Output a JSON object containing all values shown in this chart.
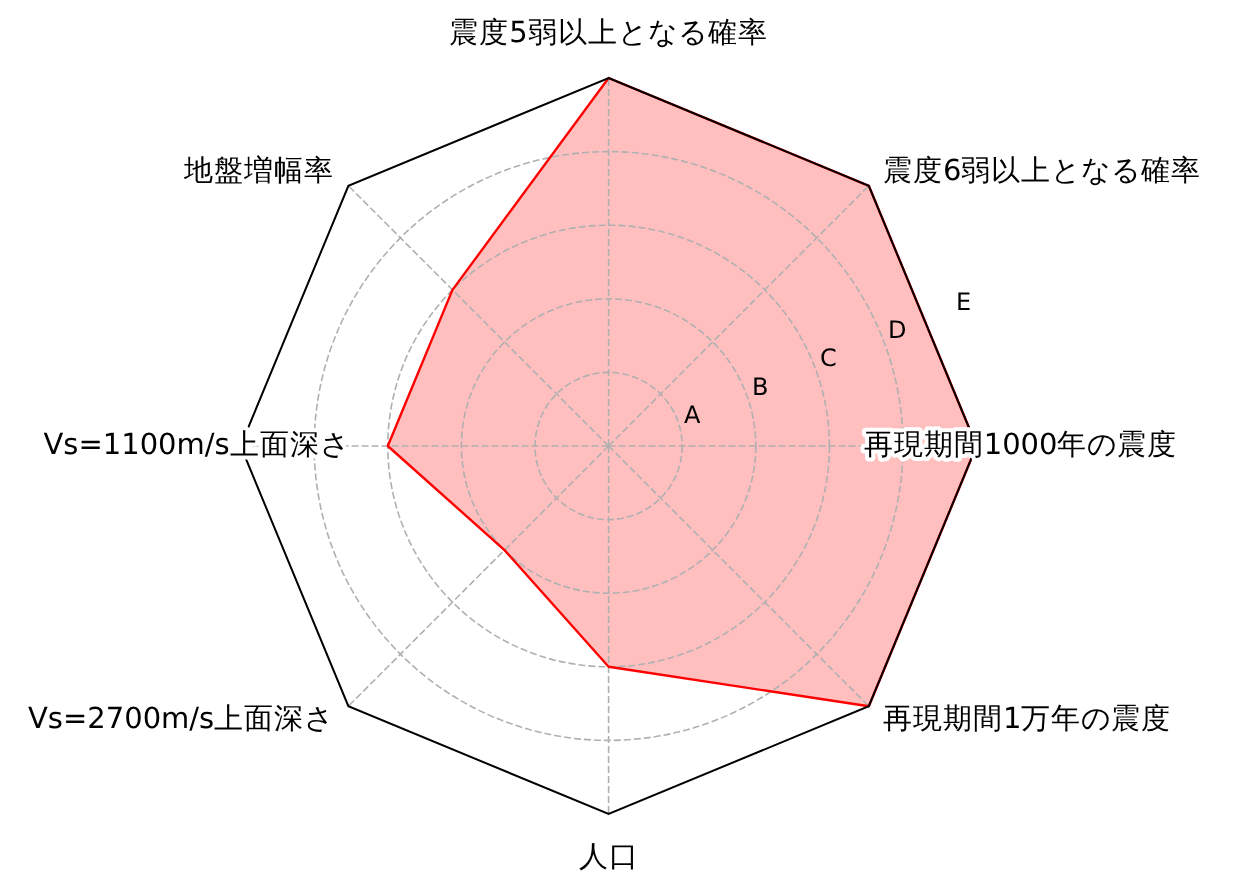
{
  "chart_data": {
    "type": "radar",
    "categories": [
      "震度5弱以上となる確率",
      "震度6弱以上となる確率",
      "再現期間1000年の震度",
      "再現期間1万年の震度",
      "人口",
      "Vs=2700m/s上面深さ",
      "Vs=1100m/s上面深さ",
      "地盤増幅率"
    ],
    "series": [
      {
        "color": "#ff0000",
        "values": [
          5,
          5,
          5,
          5,
          3,
          2,
          3,
          3
        ]
      }
    ],
    "ylim": [
      0,
      5
    ],
    "yticks": [
      {
        "value": 1,
        "label": "A"
      },
      {
        "value": 2,
        "label": "B"
      },
      {
        "value": 3,
        "label": "C"
      },
      {
        "value": 4,
        "label": "D"
      },
      {
        "value": 5,
        "label": "E"
      }
    ],
    "grid": true
  }
}
